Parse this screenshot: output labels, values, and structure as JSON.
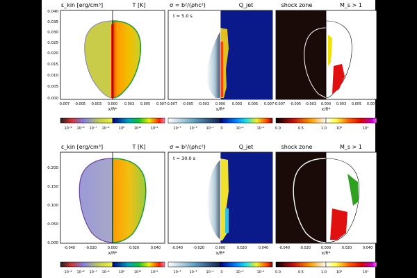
{
  "rows": [
    {
      "titles": {
        "ekin": "ε_kin [erg/cm³]",
        "temp": "T [K]",
        "sigma": "σ = b²/(ρhc²)",
        "qjet": "Q_jet",
        "shock": "shock zone",
        "mach": "M_s > 1"
      },
      "time_label": "t = 5.0 s",
      "y_label": "z/R*",
      "x_label": "x/R*",
      "y_ticks": [
        "0.040",
        "0.035",
        "0.030",
        "0.025",
        "0.020",
        "0.015",
        "0.010",
        "0.005",
        "0.000"
      ],
      "x_ticks": [
        "-0.007",
        "-0.005",
        "-0.003",
        "0.000",
        "0.003",
        "0.005",
        "0.007"
      ],
      "cb_ekin_ticks": [
        "10⁻⁹",
        "10⁻⁸",
        "10⁻⁷",
        "10⁻⁶"
      ],
      "cb_temp_ticks": [
        "10⁹",
        "10¹⁰",
        "10¹¹"
      ],
      "cb_sigma_ticks": [
        "10⁻⁵",
        "10⁻³",
        "10⁻¹"
      ],
      "cb_qjet_ticks": [
        "0",
        "10⁻³",
        "10⁻¹"
      ],
      "cb_shock_ticks": [
        "0.0",
        "0.5",
        "1.0"
      ],
      "cb_mach_ticks": [
        "10⁰",
        "10¹"
      ]
    },
    {
      "titles": {
        "ekin": "ε_kin [erg/cm³]",
        "temp": "T [K]",
        "sigma": "σ = b²/(ρhc²)",
        "qjet": "Q_jet",
        "shock": "shock zone",
        "mach": "M_s > 1"
      },
      "time_label": "t = 30.0 s",
      "y_label": "z/R*",
      "x_label": "x/R*",
      "y_ticks": [
        "0.200",
        "0.150",
        "0.100",
        "0.050",
        "0.000"
      ],
      "x_ticks": [
        "-0.040",
        "-0.020",
        "0.000",
        "0.020",
        "0.040"
      ],
      "cb_ekin_ticks": [
        "10⁻⁹",
        "10⁻⁸",
        "10⁻⁷",
        "10⁻⁶"
      ],
      "cb_temp_ticks": [
        "10⁹",
        "10¹⁰",
        "10¹¹"
      ],
      "cb_sigma_ticks": [
        "10⁻⁵",
        "10⁻³",
        "10⁻¹"
      ],
      "cb_qjet_ticks": [
        "0",
        "10⁻³",
        "10⁻¹"
      ],
      "cb_shock_ticks": [
        "0.0",
        "0.5",
        "1.0"
      ],
      "cb_mach_ticks": [
        "10⁰",
        "10¹"
      ]
    }
  ],
  "colors": {
    "ekin": "#c8cc48",
    "ekin_late": "#9a9ad8",
    "temp_hot": "#ff9a00",
    "temp_edge": "#1a9a3a",
    "qjet_bg": "#0a1a8a",
    "shock_bg": "#1a0a08"
  }
}
